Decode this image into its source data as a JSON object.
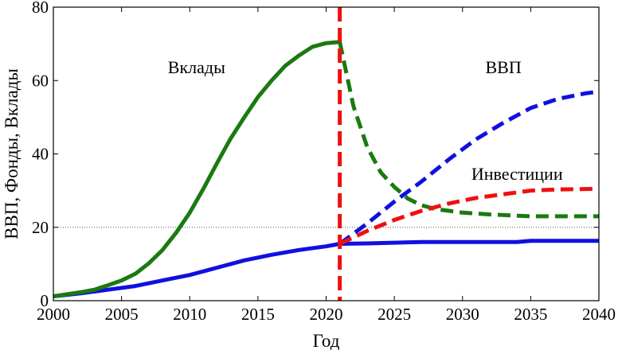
{
  "chart_data": {
    "type": "line",
    "xlabel": "Год",
    "ylabel": "ВВП, Фонды, Вклады",
    "xlim": [
      2000,
      2040
    ],
    "ylim": [
      0,
      80
    ],
    "x_ticks": [
      2000,
      2005,
      2010,
      2015,
      2020,
      2025,
      2030,
      2035,
      2040
    ],
    "y_ticks": [
      0,
      20,
      40,
      60,
      80
    ],
    "grid": false,
    "reference_line_y": 20,
    "vertical_line_x": 2021,
    "annotations": [
      {
        "text": "Вклады",
        "x": 2010.5,
        "y": 62
      },
      {
        "text": "ВВП",
        "x": 2033,
        "y": 62
      },
      {
        "text": "Инвестиции",
        "x": 2034,
        "y": 33
      }
    ],
    "series": [
      {
        "color": "#1010e0",
        "style": "solid",
        "x": [
          2000,
          2002,
          2004,
          2006,
          2008,
          2010,
          2012,
          2014,
          2016,
          2018,
          2020,
          2021
        ],
        "y": [
          1.2,
          2.0,
          3.0,
          4.0,
          5.5,
          7.0,
          9.0,
          11.0,
          12.5,
          13.8,
          14.8,
          15.5
        ]
      },
      {
        "color": "#1a7a10",
        "style": "solid",
        "x": [
          2000,
          2002,
          2003,
          2004,
          2005,
          2006,
          2007,
          2008,
          2009,
          2010,
          2011,
          2012,
          2013,
          2014,
          2015,
          2016,
          2017,
          2018,
          2019,
          2020,
          2021
        ],
        "y": [
          1.2,
          2.3,
          3.0,
          4.2,
          5.5,
          7.3,
          10.2,
          13.8,
          18.5,
          24.0,
          30.5,
          37.5,
          44.2,
          50.0,
          55.5,
          60.0,
          64.0,
          66.8,
          69.2,
          70.2,
          70.5
        ]
      },
      {
        "color": "#1a7a10",
        "style": "dashed",
        "x": [
          2021,
          2022,
          2023,
          2024,
          2025,
          2026,
          2027,
          2028,
          2030,
          2032,
          2035,
          2038,
          2040
        ],
        "y": [
          70.5,
          53.0,
          42.0,
          35.0,
          31.0,
          27.8,
          26.0,
          25.0,
          24.0,
          23.5,
          23.0,
          23.0,
          23.0
        ]
      },
      {
        "color": "#1010e0",
        "style": "solid",
        "x": [
          2021,
          2023,
          2025,
          2027,
          2030,
          2034,
          2035,
          2040
        ],
        "y": [
          15.5,
          15.6,
          15.8,
          16.0,
          16.0,
          16.0,
          16.3,
          16.3
        ]
      },
      {
        "color": "#1010e0",
        "style": "dashed",
        "x": [
          2021,
          2023,
          2025,
          2027,
          2029,
          2031,
          2033,
          2035,
          2037,
          2039,
          2040
        ],
        "y": [
          15.5,
          21.0,
          27.0,
          32.5,
          38.5,
          44.0,
          48.5,
          52.5,
          55.0,
          56.5,
          57.0
        ]
      },
      {
        "color": "#ee1010",
        "style": "dashed",
        "x": [
          2021,
          2023,
          2025,
          2027,
          2029,
          2031,
          2033,
          2035,
          2037,
          2040
        ],
        "y": [
          15.5,
          19.0,
          22.0,
          24.5,
          26.5,
          28.0,
          29.0,
          30.0,
          30.3,
          30.5
        ]
      }
    ]
  }
}
